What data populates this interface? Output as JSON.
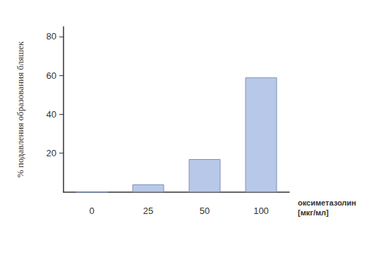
{
  "chart_data": {
    "type": "bar",
    "x_label": "оксиметазолин\n[мкг/мл]",
    "y_label": "% подавления образования бляшек",
    "categories": [
      "0",
      "25",
      "50",
      "100"
    ],
    "values": [
      0,
      4,
      17,
      59
    ],
    "color": "#b8c8e8",
    "ylim": [
      0,
      85
    ],
    "yticks": [
      20,
      40,
      60,
      80
    ],
    "grid": false
  }
}
